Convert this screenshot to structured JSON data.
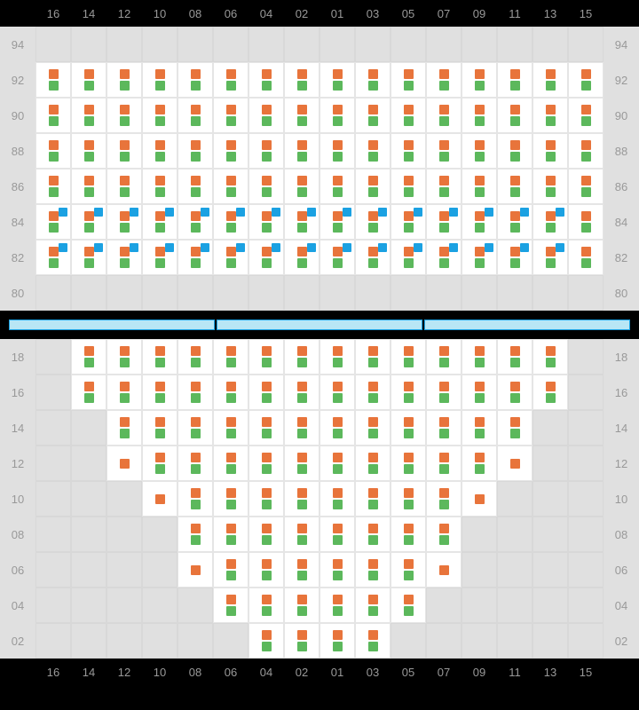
{
  "colors": {
    "seat_top": "#e8743b",
    "seat_bottom": "#5cb85c",
    "accent": "#1ba1e2",
    "cell_white": "#ffffff",
    "cell_gray": "#e0e0e0",
    "label": "#999999",
    "bg": "#000000"
  },
  "columns": [
    "16",
    "14",
    "12",
    "10",
    "08",
    "06",
    "04",
    "02",
    "01",
    "03",
    "05",
    "07",
    "09",
    "11",
    "13",
    "15"
  ],
  "upper": {
    "rows": [
      "94",
      "92",
      "90",
      "88",
      "86",
      "84",
      "82",
      "80"
    ],
    "cells": {
      "94": [
        {
          "t": "g"
        },
        {
          "t": "g"
        },
        {
          "t": "g"
        },
        {
          "t": "g"
        },
        {
          "t": "g"
        },
        {
          "t": "g"
        },
        {
          "t": "g"
        },
        {
          "t": "g"
        },
        {
          "t": "g"
        },
        {
          "t": "g"
        },
        {
          "t": "g"
        },
        {
          "t": "g"
        },
        {
          "t": "g"
        },
        {
          "t": "g"
        },
        {
          "t": "g"
        },
        {
          "t": "g"
        }
      ],
      "92": [
        {
          "t": "s"
        },
        {
          "t": "s"
        },
        {
          "t": "s"
        },
        {
          "t": "s"
        },
        {
          "t": "s"
        },
        {
          "t": "s"
        },
        {
          "t": "s"
        },
        {
          "t": "s"
        },
        {
          "t": "s"
        },
        {
          "t": "s"
        },
        {
          "t": "s"
        },
        {
          "t": "s"
        },
        {
          "t": "s"
        },
        {
          "t": "s"
        },
        {
          "t": "s"
        },
        {
          "t": "s"
        }
      ],
      "90": [
        {
          "t": "s"
        },
        {
          "t": "s"
        },
        {
          "t": "s"
        },
        {
          "t": "s"
        },
        {
          "t": "s"
        },
        {
          "t": "s"
        },
        {
          "t": "s"
        },
        {
          "t": "s"
        },
        {
          "t": "s"
        },
        {
          "t": "s"
        },
        {
          "t": "s"
        },
        {
          "t": "s"
        },
        {
          "t": "s"
        },
        {
          "t": "s"
        },
        {
          "t": "s"
        },
        {
          "t": "s"
        }
      ],
      "88": [
        {
          "t": "s"
        },
        {
          "t": "s"
        },
        {
          "t": "s"
        },
        {
          "t": "s"
        },
        {
          "t": "s"
        },
        {
          "t": "s"
        },
        {
          "t": "s"
        },
        {
          "t": "s"
        },
        {
          "t": "s"
        },
        {
          "t": "s"
        },
        {
          "t": "s"
        },
        {
          "t": "s"
        },
        {
          "t": "s"
        },
        {
          "t": "s"
        },
        {
          "t": "s"
        },
        {
          "t": "s"
        }
      ],
      "86": [
        {
          "t": "s"
        },
        {
          "t": "s"
        },
        {
          "t": "s"
        },
        {
          "t": "s"
        },
        {
          "t": "s"
        },
        {
          "t": "s"
        },
        {
          "t": "s"
        },
        {
          "t": "s"
        },
        {
          "t": "s"
        },
        {
          "t": "s"
        },
        {
          "t": "s"
        },
        {
          "t": "s"
        },
        {
          "t": "s"
        },
        {
          "t": "s"
        },
        {
          "t": "s"
        },
        {
          "t": "s"
        }
      ],
      "84": [
        {
          "t": "sb"
        },
        {
          "t": "sb"
        },
        {
          "t": "sb"
        },
        {
          "t": "sb"
        },
        {
          "t": "sb"
        },
        {
          "t": "sb"
        },
        {
          "t": "sb"
        },
        {
          "t": "sb"
        },
        {
          "t": "sb"
        },
        {
          "t": "sb"
        },
        {
          "t": "sb"
        },
        {
          "t": "sb"
        },
        {
          "t": "sb"
        },
        {
          "t": "sb"
        },
        {
          "t": "sb"
        },
        {
          "t": "s"
        }
      ],
      "82": [
        {
          "t": "sb"
        },
        {
          "t": "sb"
        },
        {
          "t": "sb"
        },
        {
          "t": "sb"
        },
        {
          "t": "sb"
        },
        {
          "t": "sb"
        },
        {
          "t": "sb"
        },
        {
          "t": "sb"
        },
        {
          "t": "sb"
        },
        {
          "t": "sb"
        },
        {
          "t": "sb"
        },
        {
          "t": "sb"
        },
        {
          "t": "sb"
        },
        {
          "t": "sb"
        },
        {
          "t": "sb"
        },
        {
          "t": "s"
        }
      ],
      "80": [
        {
          "t": "g"
        },
        {
          "t": "g"
        },
        {
          "t": "g"
        },
        {
          "t": "g"
        },
        {
          "t": "g"
        },
        {
          "t": "g"
        },
        {
          "t": "g"
        },
        {
          "t": "g"
        },
        {
          "t": "g"
        },
        {
          "t": "g"
        },
        {
          "t": "g"
        },
        {
          "t": "g"
        },
        {
          "t": "g"
        },
        {
          "t": "g"
        },
        {
          "t": "g"
        },
        {
          "t": "g"
        }
      ]
    }
  },
  "divider_segments": 3,
  "lower": {
    "rows": [
      "18",
      "16",
      "14",
      "12",
      "10",
      "08",
      "06",
      "04",
      "02"
    ],
    "cells": {
      "18": [
        {
          "t": "g"
        },
        {
          "t": "s"
        },
        {
          "t": "s"
        },
        {
          "t": "s"
        },
        {
          "t": "s"
        },
        {
          "t": "s"
        },
        {
          "t": "s"
        },
        {
          "t": "s"
        },
        {
          "t": "s"
        },
        {
          "t": "s"
        },
        {
          "t": "s"
        },
        {
          "t": "s"
        },
        {
          "t": "s"
        },
        {
          "t": "s"
        },
        {
          "t": "s"
        },
        {
          "t": "g"
        }
      ],
      "16": [
        {
          "t": "g"
        },
        {
          "t": "s"
        },
        {
          "t": "s"
        },
        {
          "t": "s"
        },
        {
          "t": "s"
        },
        {
          "t": "s"
        },
        {
          "t": "s"
        },
        {
          "t": "s"
        },
        {
          "t": "s"
        },
        {
          "t": "s"
        },
        {
          "t": "s"
        },
        {
          "t": "s"
        },
        {
          "t": "s"
        },
        {
          "t": "s"
        },
        {
          "t": "s"
        },
        {
          "t": "g"
        }
      ],
      "14": [
        {
          "t": "g"
        },
        {
          "t": "g"
        },
        {
          "t": "s"
        },
        {
          "t": "s"
        },
        {
          "t": "s"
        },
        {
          "t": "s"
        },
        {
          "t": "s"
        },
        {
          "t": "s"
        },
        {
          "t": "s"
        },
        {
          "t": "s"
        },
        {
          "t": "s"
        },
        {
          "t": "s"
        },
        {
          "t": "s"
        },
        {
          "t": "s"
        },
        {
          "t": "g"
        },
        {
          "t": "g"
        }
      ],
      "12": [
        {
          "t": "g"
        },
        {
          "t": "g"
        },
        {
          "t": "h"
        },
        {
          "t": "s"
        },
        {
          "t": "s"
        },
        {
          "t": "s"
        },
        {
          "t": "s"
        },
        {
          "t": "s"
        },
        {
          "t": "s"
        },
        {
          "t": "s"
        },
        {
          "t": "s"
        },
        {
          "t": "s"
        },
        {
          "t": "s"
        },
        {
          "t": "h"
        },
        {
          "t": "g"
        },
        {
          "t": "g"
        }
      ],
      "10": [
        {
          "t": "g"
        },
        {
          "t": "g"
        },
        {
          "t": "g"
        },
        {
          "t": "h"
        },
        {
          "t": "s"
        },
        {
          "t": "s"
        },
        {
          "t": "s"
        },
        {
          "t": "s"
        },
        {
          "t": "s"
        },
        {
          "t": "s"
        },
        {
          "t": "s"
        },
        {
          "t": "s"
        },
        {
          "t": "h"
        },
        {
          "t": "g"
        },
        {
          "t": "g"
        },
        {
          "t": "g"
        }
      ],
      "08": [
        {
          "t": "g"
        },
        {
          "t": "g"
        },
        {
          "t": "g"
        },
        {
          "t": "g"
        },
        {
          "t": "s"
        },
        {
          "t": "s"
        },
        {
          "t": "s"
        },
        {
          "t": "s"
        },
        {
          "t": "s"
        },
        {
          "t": "s"
        },
        {
          "t": "s"
        },
        {
          "t": "s"
        },
        {
          "t": "g"
        },
        {
          "t": "g"
        },
        {
          "t": "g"
        },
        {
          "t": "g"
        }
      ],
      "06": [
        {
          "t": "g"
        },
        {
          "t": "g"
        },
        {
          "t": "g"
        },
        {
          "t": "g"
        },
        {
          "t": "h"
        },
        {
          "t": "s"
        },
        {
          "t": "s"
        },
        {
          "t": "s"
        },
        {
          "t": "s"
        },
        {
          "t": "s"
        },
        {
          "t": "s"
        },
        {
          "t": "h"
        },
        {
          "t": "g"
        },
        {
          "t": "g"
        },
        {
          "t": "g"
        },
        {
          "t": "g"
        }
      ],
      "04": [
        {
          "t": "g"
        },
        {
          "t": "g"
        },
        {
          "t": "g"
        },
        {
          "t": "g"
        },
        {
          "t": "g"
        },
        {
          "t": "s"
        },
        {
          "t": "s"
        },
        {
          "t": "s"
        },
        {
          "t": "s"
        },
        {
          "t": "s"
        },
        {
          "t": "s"
        },
        {
          "t": "g"
        },
        {
          "t": "g"
        },
        {
          "t": "g"
        },
        {
          "t": "g"
        },
        {
          "t": "g"
        }
      ],
      "02": [
        {
          "t": "g"
        },
        {
          "t": "g"
        },
        {
          "t": "g"
        },
        {
          "t": "g"
        },
        {
          "t": "g"
        },
        {
          "t": "g"
        },
        {
          "t": "s"
        },
        {
          "t": "s"
        },
        {
          "t": "s"
        },
        {
          "t": "s"
        },
        {
          "t": "g"
        },
        {
          "t": "g"
        },
        {
          "t": "g"
        },
        {
          "t": "g"
        },
        {
          "t": "g"
        },
        {
          "t": "g"
        }
      ]
    }
  }
}
